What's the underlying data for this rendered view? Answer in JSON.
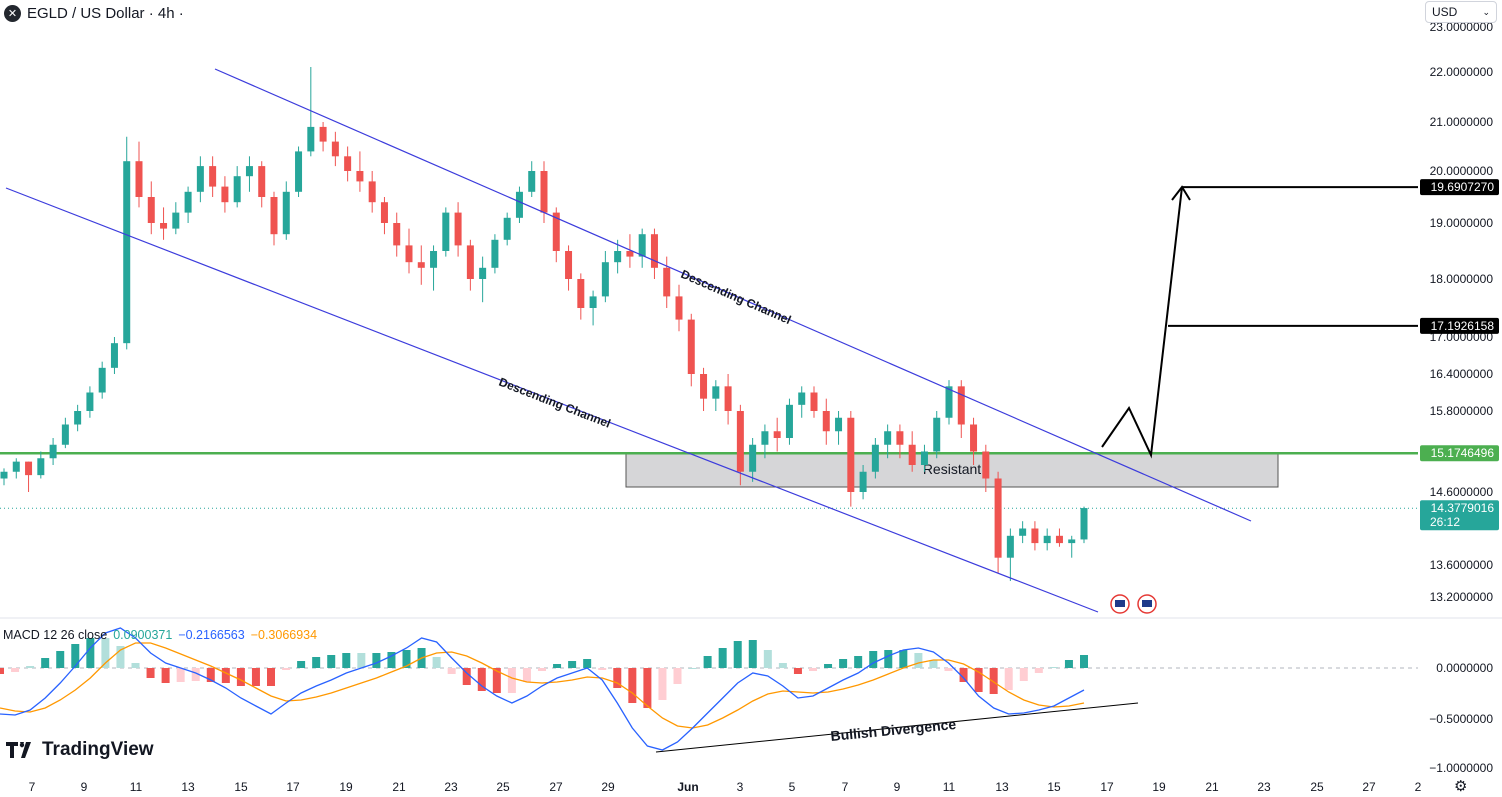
{
  "header": {
    "title": "EGLD / US Dollar · 4h ·",
    "currency": "USD"
  },
  "macd_legend": {
    "label": "MACD 12 26 close",
    "hist": "0.0900371",
    "macd": "−0.2166563",
    "signal": "−0.3066934"
  },
  "logo_text": "TradingView",
  "colors": {
    "up": "#26a69a",
    "down": "#ef5350",
    "channel": "#3c3cdc",
    "support": "#4caf50",
    "macd_line": "#2962ff",
    "signal_line": "#ff9800"
  },
  "chart_data": {
    "type": "candlestick",
    "symbol": "EGLD / US Dollar",
    "timeframe": "4h",
    "price_axis": {
      "ticks": [
        "22.0000000",
        "21.0000000",
        "20.0000000",
        "19.0000000",
        "18.0000000",
        "17.0000000",
        "16.4000000",
        "15.8000000",
        "14.6000000",
        "13.6000000",
        "13.2000000"
      ],
      "price_ticks": [
        22.0,
        21.0,
        20.0,
        19.0,
        18.0,
        17.0,
        16.4,
        15.8,
        14.6,
        13.6,
        13.2
      ]
    },
    "price_labels": [
      {
        "text": "19.6907270",
        "value": 19.690727
      },
      {
        "text": "17.1926158",
        "value": 17.1926158
      },
      {
        "text": "15.1746496",
        "value": 15.1746496
      },
      {
        "text": "14.3779016",
        "value": 14.3779016,
        "sub": "26:12"
      }
    ],
    "date_axis": [
      "7",
      "9",
      "11",
      "13",
      "15",
      "17",
      "19",
      "21",
      "23",
      "25",
      "27",
      "29",
      "Jun",
      "3",
      "5",
      "7",
      "9",
      "11",
      "13",
      "15",
      "17",
      "19",
      "21",
      "23",
      "25",
      "27",
      "2"
    ],
    "macd_axis": {
      "ticks": [
        "0.0000000",
        "−0.5000000",
        "−1.0000000"
      ]
    },
    "annotations": {
      "channel_upper_label": "Descending Channel",
      "channel_lower_label": "Descending Channel",
      "zone_label": "Resistant",
      "divergence_label": "Bullish Divergence"
    },
    "support_level": 15.1746496,
    "current_price": 14.3779016,
    "candles_ohlc": [
      [
        14.8,
        14.95,
        14.7,
        14.9
      ],
      [
        14.9,
        15.1,
        14.8,
        15.05
      ],
      [
        15.05,
        15.05,
        14.6,
        14.85
      ],
      [
        14.85,
        15.2,
        14.8,
        15.1
      ],
      [
        15.1,
        15.4,
        15.0,
        15.3
      ],
      [
        15.3,
        15.7,
        15.25,
        15.6
      ],
      [
        15.6,
        15.9,
        15.5,
        15.8
      ],
      [
        15.8,
        16.2,
        15.7,
        16.1
      ],
      [
        16.1,
        16.6,
        16.0,
        16.5
      ],
      [
        16.5,
        17.0,
        16.4,
        16.9
      ],
      [
        16.9,
        20.7,
        16.8,
        20.2
      ],
      [
        20.2,
        20.6,
        19.3,
        19.5
      ],
      [
        19.5,
        19.8,
        18.8,
        19.0
      ],
      [
        19.0,
        19.3,
        18.7,
        18.9
      ],
      [
        18.9,
        19.4,
        18.8,
        19.2
      ],
      [
        19.2,
        19.7,
        19.0,
        19.6
      ],
      [
        19.6,
        20.3,
        19.4,
        20.1
      ],
      [
        20.1,
        20.3,
        19.5,
        19.7
      ],
      [
        19.7,
        19.9,
        19.2,
        19.4
      ],
      [
        19.4,
        20.1,
        19.3,
        19.9
      ],
      [
        19.9,
        20.3,
        19.6,
        20.1
      ],
      [
        20.1,
        20.2,
        19.3,
        19.5
      ],
      [
        19.5,
        19.6,
        18.6,
        18.8
      ],
      [
        18.8,
        19.8,
        18.7,
        19.6
      ],
      [
        19.6,
        20.5,
        19.5,
        20.4
      ],
      [
        20.4,
        22.1,
        20.3,
        20.9
      ],
      [
        20.9,
        21.0,
        20.4,
        20.6
      ],
      [
        20.6,
        20.8,
        20.1,
        20.3
      ],
      [
        20.3,
        20.5,
        19.8,
        20.0
      ],
      [
        20.0,
        20.4,
        19.6,
        19.8
      ],
      [
        19.8,
        20.0,
        19.2,
        19.4
      ],
      [
        19.4,
        19.5,
        18.8,
        19.0
      ],
      [
        19.0,
        19.2,
        18.4,
        18.6
      ],
      [
        18.6,
        18.9,
        18.1,
        18.3
      ],
      [
        18.3,
        18.6,
        17.9,
        18.2
      ],
      [
        18.2,
        18.6,
        17.8,
        18.5
      ],
      [
        18.5,
        19.3,
        18.4,
        19.2
      ],
      [
        19.2,
        19.4,
        18.4,
        18.6
      ],
      [
        18.6,
        18.7,
        17.8,
        18.0
      ],
      [
        18.0,
        18.4,
        17.6,
        18.2
      ],
      [
        18.2,
        18.8,
        18.1,
        18.7
      ],
      [
        18.7,
        19.2,
        18.6,
        19.1
      ],
      [
        19.1,
        19.7,
        19.0,
        19.6
      ],
      [
        19.6,
        20.2,
        19.5,
        20.0
      ],
      [
        20.0,
        20.2,
        19.0,
        19.2
      ],
      [
        19.2,
        19.3,
        18.3,
        18.5
      ],
      [
        18.5,
        18.6,
        17.8,
        18.0
      ],
      [
        18.0,
        18.1,
        17.3,
        17.5
      ],
      [
        17.5,
        17.8,
        17.2,
        17.7
      ],
      [
        17.7,
        18.5,
        17.6,
        18.3
      ],
      [
        18.3,
        18.7,
        18.1,
        18.5
      ],
      [
        18.5,
        18.8,
        18.2,
        18.4
      ],
      [
        18.4,
        18.9,
        18.2,
        18.8
      ],
      [
        18.8,
        18.9,
        18.0,
        18.2
      ],
      [
        18.2,
        18.4,
        17.5,
        17.7
      ],
      [
        17.7,
        17.9,
        17.1,
        17.3
      ],
      [
        17.3,
        17.4,
        16.2,
        16.4
      ],
      [
        16.4,
        16.5,
        15.8,
        16.0
      ],
      [
        16.0,
        16.3,
        15.8,
        16.2
      ],
      [
        16.2,
        16.4,
        15.6,
        15.8
      ],
      [
        15.8,
        15.9,
        14.7,
        14.9
      ],
      [
        14.9,
        15.4,
        14.75,
        15.3
      ],
      [
        15.3,
        15.6,
        15.1,
        15.5
      ],
      [
        15.5,
        15.7,
        15.2,
        15.4
      ],
      [
        15.4,
        16.0,
        15.3,
        15.9
      ],
      [
        15.9,
        16.2,
        15.7,
        16.1
      ],
      [
        16.1,
        16.2,
        15.7,
        15.8
      ],
      [
        15.8,
        16.0,
        15.3,
        15.5
      ],
      [
        15.5,
        15.8,
        15.3,
        15.7
      ],
      [
        15.7,
        15.8,
        14.4,
        14.6
      ],
      [
        14.6,
        15.0,
        14.5,
        14.9
      ],
      [
        14.9,
        15.4,
        14.8,
        15.3
      ],
      [
        15.3,
        15.6,
        15.1,
        15.5
      ],
      [
        15.5,
        15.6,
        15.1,
        15.3
      ],
      [
        15.3,
        15.5,
        14.9,
        15.0
      ],
      [
        15.0,
        15.3,
        14.9,
        15.2
      ],
      [
        15.2,
        15.8,
        15.1,
        15.7
      ],
      [
        15.7,
        16.3,
        15.6,
        16.2
      ],
      [
        16.2,
        16.3,
        15.4,
        15.6
      ],
      [
        15.6,
        15.7,
        15.0,
        15.2
      ],
      [
        15.2,
        15.3,
        14.6,
        14.8
      ],
      [
        14.8,
        14.9,
        13.5,
        13.7
      ],
      [
        13.7,
        14.1,
        13.4,
        14.0
      ],
      [
        14.0,
        14.2,
        13.9,
        14.1
      ],
      [
        14.1,
        14.2,
        13.8,
        13.9
      ],
      [
        13.9,
        14.1,
        13.8,
        14.0
      ],
      [
        14.0,
        14.1,
        13.85,
        13.9
      ],
      [
        13.9,
        14.0,
        13.7,
        13.95
      ],
      [
        13.95,
        14.4,
        13.9,
        14.38
      ]
    ],
    "macd_series": {
      "macd": [
        -0.46,
        -0.47,
        -0.42,
        -0.3,
        -0.15,
        0.02,
        0.2,
        0.35,
        0.4,
        0.3,
        0.15,
        0.05,
        0.0,
        -0.05,
        -0.12,
        -0.2,
        -0.3,
        -0.38,
        -0.46,
        -0.35,
        -0.25,
        -0.18,
        -0.12,
        -0.05,
        0.0,
        0.05,
        0.12,
        0.2,
        0.3,
        0.26,
        0.1,
        -0.05,
        -0.18,
        -0.28,
        -0.35,
        -0.28,
        -0.18,
        -0.1,
        -0.05,
        0.0,
        -0.12,
        -0.35,
        -0.6,
        -0.78,
        -0.82,
        -0.74,
        -0.6,
        -0.45,
        -0.3,
        -0.15,
        -0.05,
        -0.08,
        -0.18,
        -0.3,
        -0.28,
        -0.2,
        -0.12,
        -0.05,
        0.05,
        0.12,
        0.18,
        0.2,
        0.16,
        0.05,
        -0.1,
        -0.28,
        -0.4,
        -0.46,
        -0.45,
        -0.42,
        -0.38,
        -0.3,
        -0.22
      ],
      "signal": [
        -0.4,
        -0.43,
        -0.44,
        -0.4,
        -0.32,
        -0.22,
        -0.1,
        0.05,
        0.18,
        0.25,
        0.25,
        0.2,
        0.14,
        0.08,
        0.02,
        -0.05,
        -0.12,
        -0.2,
        -0.28,
        -0.33,
        -0.32,
        -0.29,
        -0.25,
        -0.2,
        -0.15,
        -0.1,
        -0.04,
        0.02,
        0.1,
        0.15,
        0.16,
        0.12,
        0.05,
        -0.03,
        -0.1,
        -0.14,
        -0.15,
        -0.14,
        -0.12,
        -0.09,
        -0.1,
        -0.15,
        -0.25,
        -0.38,
        -0.5,
        -0.58,
        -0.6,
        -0.57,
        -0.5,
        -0.42,
        -0.33,
        -0.26,
        -0.23,
        -0.24,
        -0.25,
        -0.24,
        -0.21,
        -0.17,
        -0.12,
        -0.06,
        0.0,
        0.05,
        0.08,
        0.08,
        0.04,
        -0.04,
        -0.14,
        -0.24,
        -0.32,
        -0.37,
        -0.39,
        -0.38,
        -0.35
      ]
    }
  }
}
